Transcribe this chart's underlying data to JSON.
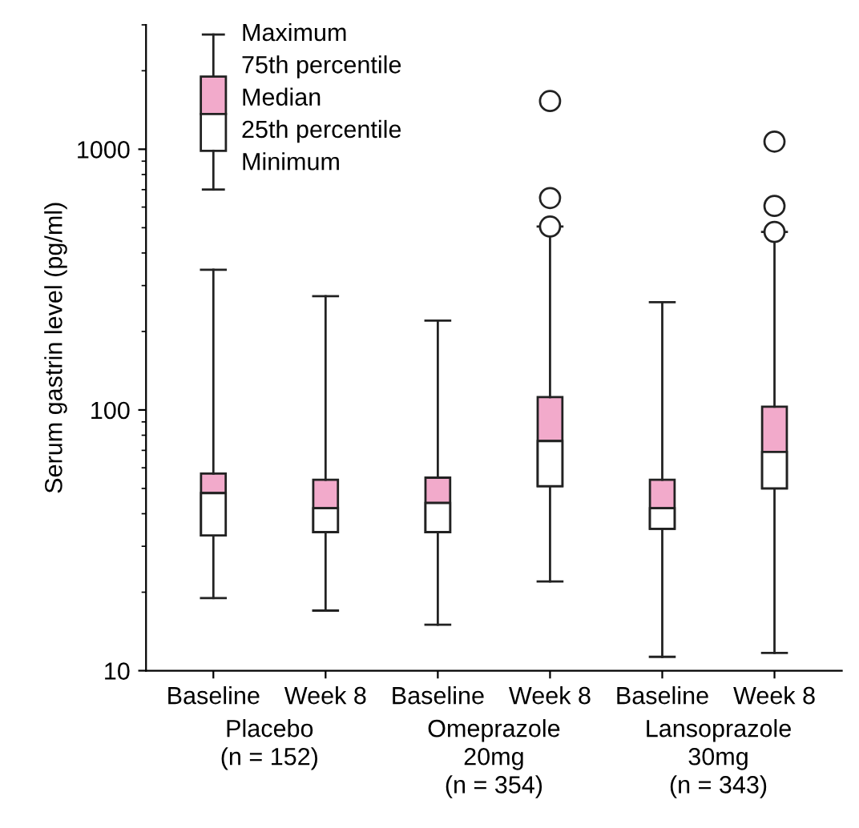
{
  "chart_data": {
    "type": "box",
    "ylabel": "Serum gastrin level (pg/ml)",
    "categories": [
      "Baseline",
      "Week 8",
      "Baseline",
      "Week 8",
      "Baseline",
      "Week 8"
    ],
    "series": [
      {
        "color": "#f2aacb",
        "boxes": [
          {
            "low": 19,
            "q1": 33,
            "median": 48,
            "q3": 57,
            "high": 345
          },
          {
            "low": 17,
            "q1": 34,
            "median": 42,
            "q3": 54,
            "high": 273
          },
          {
            "low": 15,
            "q1": 34,
            "median": 44,
            "q3": 55,
            "high": 220
          },
          {
            "low": 22,
            "q1": 51,
            "median": 76,
            "q3": 112,
            "high": 505,
            "outliers": [
              505,
              650,
              1530
            ]
          },
          {
            "low": 11.3,
            "q1": 35,
            "median": 42,
            "q3": 54,
            "high": 259
          },
          {
            "low": 11.7,
            "q1": 50,
            "median": 69,
            "q3": 103,
            "high": 482,
            "outliers": [
              482,
              606,
              1070
            ]
          }
        ]
      }
    ],
    "marker": "circle",
    "log": "y",
    "ylim": [
      10,
      3000
    ],
    "yticks": [
      10,
      100,
      1000
    ],
    "annotations": [
      "Placebo\n(n = 152)",
      "Omeprazole\n20mg\n(n = 354)",
      "Lansoprazole\n30mg\n(n = 343)",
      "Maximum",
      "75th percentile",
      "Median",
      "25th percentile",
      "Minimum"
    ]
  }
}
